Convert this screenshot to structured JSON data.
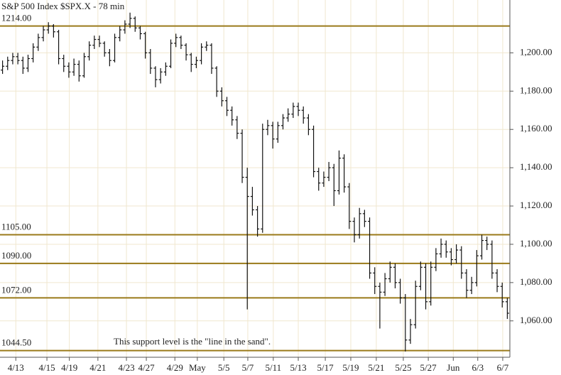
{
  "chart_data": {
    "type": "ohlc",
    "title": "S&P 500 Index  $SPX.X - 78 min",
    "annotation": "This support level is the \"line in the sand\".",
    "bar_color": "#111111",
    "level_color": "#9a7a1a",
    "grid": true,
    "grid_color": "#f0e7cf",
    "xlim": [
      0,
      100
    ],
    "xticks": [
      {
        "value": 3.1,
        "label": "4/13"
      },
      {
        "value": 9.2,
        "label": "4/15"
      },
      {
        "value": 13.6,
        "label": "4/19"
      },
      {
        "value": 19.2,
        "label": "4/21"
      },
      {
        "value": 24.8,
        "label": "4/23"
      },
      {
        "value": 28.7,
        "label": "4/27"
      },
      {
        "value": 34.3,
        "label": "4/29"
      },
      {
        "value": 38.7,
        "label": "May"
      },
      {
        "value": 43.9,
        "label": "5/5"
      },
      {
        "value": 48.6,
        "label": "5/7"
      },
      {
        "value": 53.6,
        "label": "5/11"
      },
      {
        "value": 58.5,
        "label": "5/13"
      },
      {
        "value": 63.8,
        "label": "5/17"
      },
      {
        "value": 68.8,
        "label": "5/19"
      },
      {
        "value": 73.8,
        "label": "5/21"
      },
      {
        "value": 79.1,
        "label": "5/25"
      },
      {
        "value": 84,
        "label": "5/27"
      },
      {
        "value": 88.9,
        "label": "Jun"
      },
      {
        "value": 93.7,
        "label": "6/3"
      },
      {
        "value": 98.6,
        "label": "6/7"
      }
    ],
    "ylim": [
      1041,
      1227.6
    ],
    "yticks": [
      {
        "value": 1060,
        "label": "1,060.00"
      },
      {
        "value": 1080,
        "label": "1,080.00"
      },
      {
        "value": 1100,
        "label": "1,100.00"
      },
      {
        "value": 1120,
        "label": "1,120.00"
      },
      {
        "value": 1140,
        "label": "1,140.00"
      },
      {
        "value": 1160,
        "label": "1,160.00"
      },
      {
        "value": 1180,
        "label": "1,180.00"
      },
      {
        "value": 1200,
        "label": "1,200.00"
      }
    ],
    "levels": [
      {
        "value": 1214,
        "label": "1214.00"
      },
      {
        "value": 1105,
        "label": "1105.00"
      },
      {
        "value": 1090,
        "label": "1090.00"
      },
      {
        "value": 1072,
        "label": "1072.00"
      },
      {
        "value": 1044.5,
        "label": "1044.50"
      }
    ],
    "ohlc": [
      [
        1191,
        1196,
        1189,
        1193
      ],
      [
        1193,
        1198,
        1191,
        1196
      ],
      [
        1196,
        1200,
        1194,
        1198
      ],
      [
        1198,
        1200,
        1194,
        1196
      ],
      [
        1196,
        1198,
        1189,
        1192
      ],
      [
        1192,
        1199,
        1190,
        1197
      ],
      [
        1197,
        1205,
        1195,
        1203
      ],
      [
        1203,
        1210,
        1201,
        1208
      ],
      [
        1208,
        1214,
        1206,
        1212
      ],
      [
        1212,
        1216,
        1210,
        1214
      ],
      [
        1214,
        1215,
        1208,
        1211
      ],
      [
        1211,
        1212,
        1194,
        1197
      ],
      [
        1197,
        1199,
        1190,
        1193
      ],
      [
        1193,
        1195,
        1187,
        1190
      ],
      [
        1190,
        1197,
        1188,
        1194
      ],
      [
        1194,
        1196,
        1185,
        1188
      ],
      [
        1188,
        1200,
        1187,
        1198
      ],
      [
        1198,
        1206,
        1196,
        1204
      ],
      [
        1204,
        1209,
        1202,
        1207
      ],
      [
        1207,
        1209,
        1203,
        1205
      ],
      [
        1205,
        1206,
        1198,
        1200
      ],
      [
        1200,
        1202,
        1193,
        1196
      ],
      [
        1196,
        1210,
        1195,
        1208
      ],
      [
        1208,
        1214,
        1206,
        1212
      ],
      [
        1212,
        1217,
        1210,
        1215
      ],
      [
        1215,
        1221,
        1213,
        1218
      ],
      [
        1218,
        1219,
        1211,
        1213
      ],
      [
        1213,
        1214,
        1207,
        1210
      ],
      [
        1210,
        1211,
        1197,
        1200
      ],
      [
        1200,
        1202,
        1189,
        1192
      ],
      [
        1192,
        1193,
        1182,
        1186
      ],
      [
        1186,
        1192,
        1184,
        1190
      ],
      [
        1190,
        1195,
        1188,
        1193
      ],
      [
        1193,
        1207,
        1192,
        1205
      ],
      [
        1205,
        1210,
        1203,
        1208
      ],
      [
        1208,
        1209,
        1202,
        1204
      ],
      [
        1204,
        1205,
        1196,
        1199
      ],
      [
        1199,
        1200,
        1190,
        1194
      ],
      [
        1194,
        1198,
        1192,
        1196
      ],
      [
        1196,
        1205,
        1194,
        1203
      ],
      [
        1203,
        1206,
        1201,
        1204
      ],
      [
        1204,
        1205,
        1189,
        1192
      ],
      [
        1192,
        1193,
        1177,
        1180
      ],
      [
        1180,
        1182,
        1172,
        1175
      ],
      [
        1175,
        1177,
        1167,
        1170
      ],
      [
        1170,
        1172,
        1162,
        1165
      ],
      [
        1165,
        1167,
        1155,
        1158
      ],
      [
        1158,
        1160,
        1132,
        1135
      ],
      [
        1135,
        1140,
        1066,
        1125
      ],
      [
        1125,
        1130,
        1115,
        1118
      ],
      [
        1118,
        1120,
        1104,
        1108
      ],
      [
        1108,
        1163,
        1106,
        1160
      ],
      [
        1160,
        1165,
        1157,
        1162
      ],
      [
        1162,
        1164,
        1150,
        1155
      ],
      [
        1155,
        1164,
        1153,
        1162
      ],
      [
        1162,
        1168,
        1160,
        1166
      ],
      [
        1166,
        1171,
        1164,
        1168
      ],
      [
        1168,
        1174,
        1166,
        1172
      ],
      [
        1172,
        1174,
        1167,
        1170
      ],
      [
        1170,
        1172,
        1163,
        1166
      ],
      [
        1166,
        1168,
        1157,
        1160
      ],
      [
        1160,
        1162,
        1135,
        1138
      ],
      [
        1138,
        1140,
        1128,
        1132
      ],
      [
        1132,
        1138,
        1130,
        1135
      ],
      [
        1135,
        1143,
        1133,
        1140
      ],
      [
        1140,
        1142,
        1120,
        1128
      ],
      [
        1128,
        1149,
        1126,
        1145
      ],
      [
        1145,
        1147,
        1127,
        1130
      ],
      [
        1130,
        1132,
        1108,
        1112
      ],
      [
        1112,
        1114,
        1101,
        1105
      ],
      [
        1105,
        1119,
        1103,
        1116
      ],
      [
        1116,
        1118,
        1109,
        1112
      ],
      [
        1112,
        1114,
        1082,
        1085
      ],
      [
        1085,
        1088,
        1074,
        1078
      ],
      [
        1078,
        1080,
        1056,
        1075
      ],
      [
        1075,
        1085,
        1073,
        1082
      ],
      [
        1082,
        1091,
        1080,
        1088
      ],
      [
        1088,
        1090,
        1077,
        1080
      ],
      [
        1080,
        1082,
        1069,
        1072
      ],
      [
        1072,
        1074,
        1044,
        1050
      ],
      [
        1050,
        1061,
        1048,
        1058
      ],
      [
        1058,
        1081,
        1056,
        1078
      ],
      [
        1078,
        1091,
        1076,
        1088
      ],
      [
        1088,
        1090,
        1066,
        1070
      ],
      [
        1070,
        1091,
        1068,
        1088
      ],
      [
        1088,
        1098,
        1086,
        1095
      ],
      [
        1095,
        1103,
        1093,
        1100
      ],
      [
        1100,
        1102,
        1093,
        1096
      ],
      [
        1096,
        1098,
        1089,
        1092
      ],
      [
        1092,
        1100,
        1090,
        1097
      ],
      [
        1097,
        1099,
        1082,
        1085
      ],
      [
        1085,
        1087,
        1072,
        1076
      ],
      [
        1076,
        1083,
        1074,
        1080
      ],
      [
        1080,
        1097,
        1078,
        1094
      ],
      [
        1094,
        1105,
        1092,
        1102
      ],
      [
        1102,
        1104,
        1097,
        1100
      ],
      [
        1100,
        1102,
        1082,
        1085
      ],
      [
        1085,
        1087,
        1075,
        1078
      ],
      [
        1078,
        1080,
        1067,
        1070
      ],
      [
        1070,
        1072,
        1061,
        1064
      ]
    ]
  }
}
